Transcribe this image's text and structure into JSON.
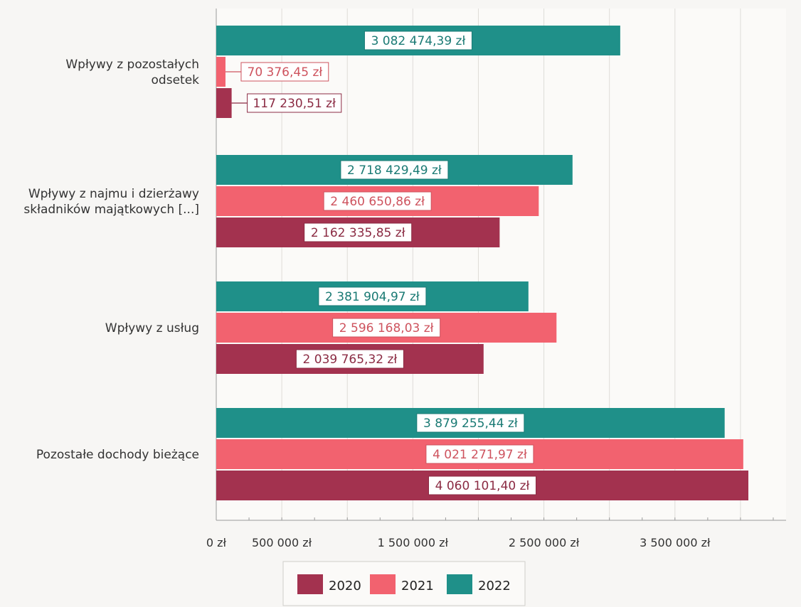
{
  "chart_data": {
    "type": "bar",
    "orientation": "horizontal",
    "title": "",
    "xlabel": "",
    "ylabel": "",
    "categories": [
      [
        "Wpływy z pozostałych",
        "odsetek"
      ],
      [
        "Wpływy z najmu i dzierżawy",
        "składników majątkowych [...]"
      ],
      [
        "Wpływy z usług"
      ],
      [
        "Pozostałe dochody bieżące"
      ]
    ],
    "series": [
      {
        "name": "2022",
        "color": "#1f9089",
        "values": [
          3082474.39,
          2718429.49,
          2381904.97,
          3879255.44
        ],
        "labels": [
          "3 082 474,39 zł",
          "2 718 429,49 zł",
          "2 381 904,97 zł",
          "3 879 255,44 zł"
        ]
      },
      {
        "name": "2021",
        "color": "#f2626f",
        "values": [
          70376.45,
          2460650.86,
          2596168.03,
          4021271.97
        ],
        "labels": [
          "70 376,45 zł",
          "2 460 650,86 zł",
          "2 596 168,03 zł",
          "4 021 271,97 zł"
        ]
      },
      {
        "name": "2020",
        "color": "#a3324f",
        "values": [
          117230.51,
          2162335.85,
          2039765.32,
          4060101.4
        ],
        "labels": [
          "117 230,51 zł",
          "2 162 335,85 zł",
          "2 039 765,32 zł",
          "4 060 101,40 zł"
        ]
      }
    ],
    "xlim": [
      0,
      4500000
    ],
    "xticks": [
      0,
      500000,
      1500000,
      2500000,
      3500000
    ],
    "xtick_labels": [
      "0 zł",
      "500 000 zł",
      "1 500 000 zł",
      "2 500 000 zł",
      "3 500 000 zł"
    ],
    "grid": true,
    "legend": {
      "position": "bottom",
      "order": [
        "2020",
        "2021",
        "2022"
      ]
    }
  }
}
